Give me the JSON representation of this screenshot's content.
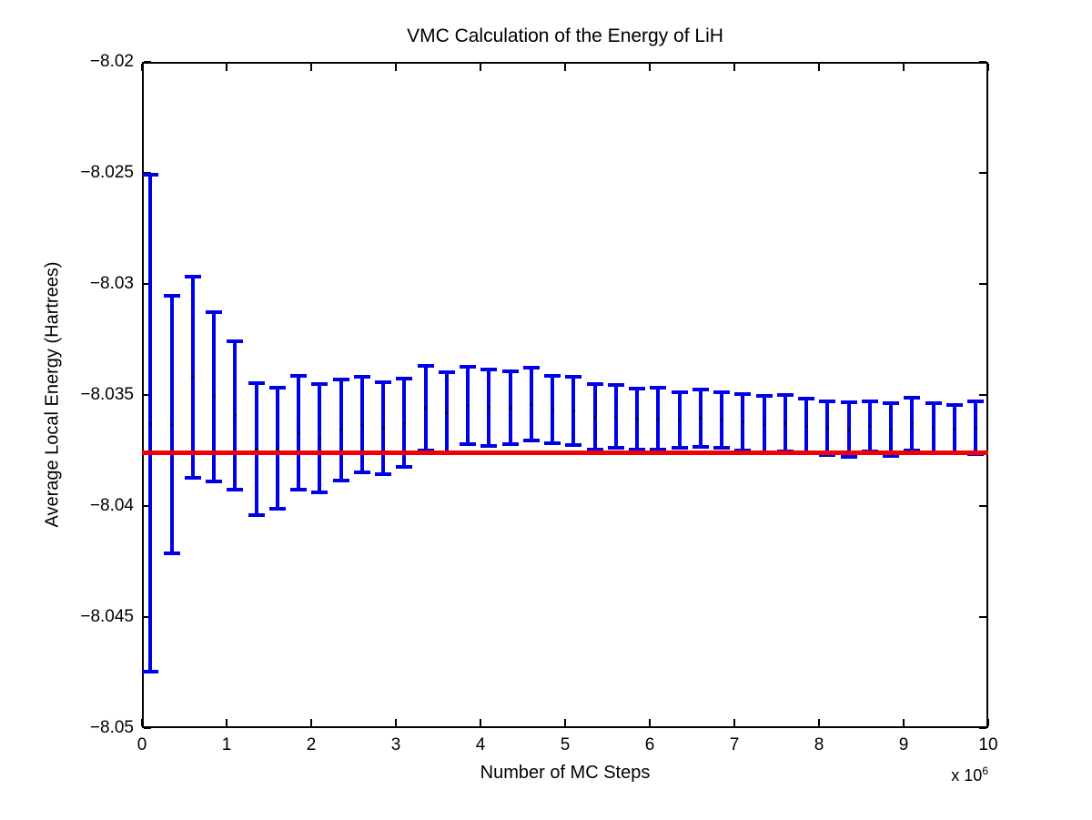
{
  "figure": {
    "background": "#ffffff",
    "title": "VMC Calculation of the Energy of LiH",
    "xlabel": "Number of MC Steps",
    "ylabel": "Average Local Energy (Hartrees)",
    "x_axis_multiplier": {
      "base": "x 10",
      "exponent": "6"
    }
  },
  "chart_data": {
    "type": "errorbar",
    "title": "VMC Calculation of the Energy of LiH",
    "xlabel": "Number of MC Steps",
    "ylabel": "Average Local Energy (Hartrees)",
    "x_scale_label": "x 10^6",
    "xlim": [
      0,
      10
    ],
    "ylim": [
      -8.05,
      -8.02
    ],
    "grid": false,
    "box": true,
    "legend": "none",
    "xticks": [
      0,
      1,
      2,
      3,
      4,
      5,
      6,
      7,
      8,
      9,
      10
    ],
    "xtick_labels": [
      "0",
      "1",
      "2",
      "3",
      "4",
      "5",
      "6",
      "7",
      "8",
      "9",
      "10"
    ],
    "ytick_values": [
      -8.02,
      -8.025,
      -8.03,
      -8.035,
      -8.04,
      -8.045,
      -8.05
    ],
    "ytick_labels": [
      "−8.02",
      "−8.025",
      "−8.03",
      "−8.035",
      "−8.04",
      "−8.045",
      "−8.05"
    ],
    "errorbar_color": "#0000e8",
    "marker_color": "#000050",
    "axis_color": "#000000",
    "reference_line": {
      "value": -8.0376,
      "color": "#f00000"
    },
    "points": [
      {
        "x": 0.1,
        "mean": -8.03628,
        "err": 0.01118
      },
      {
        "x": 0.35,
        "mean": -8.03634,
        "err": 0.00581
      },
      {
        "x": 0.6,
        "mean": -8.0342,
        "err": 0.00454
      },
      {
        "x": 0.85,
        "mean": -8.03508,
        "err": 0.00382
      },
      {
        "x": 1.1,
        "mean": -8.03593,
        "err": 0.00335
      },
      {
        "x": 1.35,
        "mean": -8.03744,
        "err": 0.00297
      },
      {
        "x": 1.6,
        "mean": -8.03739,
        "err": 0.00272
      },
      {
        "x": 1.85,
        "mean": -8.0367,
        "err": 0.00257
      },
      {
        "x": 2.1,
        "mean": -8.03695,
        "err": 0.00245
      },
      {
        "x": 2.35,
        "mean": -8.03658,
        "err": 0.00228
      },
      {
        "x": 2.6,
        "mean": -8.03634,
        "err": 0.00216
      },
      {
        "x": 2.85,
        "mean": -8.0365,
        "err": 0.00208
      },
      {
        "x": 3.1,
        "mean": -8.03625,
        "err": 0.00199
      },
      {
        "x": 3.35,
        "mean": -8.0356,
        "err": 0.00191
      },
      {
        "x": 3.6,
        "mean": -8.0358,
        "err": 0.00183
      },
      {
        "x": 3.85,
        "mean": -8.03547,
        "err": 0.00175
      },
      {
        "x": 4.1,
        "mean": -8.03557,
        "err": 0.00172
      },
      {
        "x": 4.35,
        "mean": -8.03558,
        "err": 0.00165
      },
      {
        "x": 4.6,
        "mean": -8.03541,
        "err": 0.00164
      },
      {
        "x": 4.85,
        "mean": -8.03566,
        "err": 0.00152
      },
      {
        "x": 5.1,
        "mean": -8.03572,
        "err": 0.00154
      },
      {
        "x": 5.35,
        "mean": -8.03599,
        "err": 0.00148
      },
      {
        "x": 5.6,
        "mean": -8.03597,
        "err": 0.00142
      },
      {
        "x": 5.85,
        "mean": -8.03609,
        "err": 0.00138
      },
      {
        "x": 6.1,
        "mean": -8.03607,
        "err": 0.0014
      },
      {
        "x": 6.35,
        "mean": -8.03613,
        "err": 0.00125
      },
      {
        "x": 6.6,
        "mean": -8.03605,
        "err": 0.0013
      },
      {
        "x": 6.85,
        "mean": -8.03613,
        "err": 0.00125
      },
      {
        "x": 7.1,
        "mean": -8.03622,
        "err": 0.00126
      },
      {
        "x": 7.35,
        "mean": -8.03632,
        "err": 0.00128
      },
      {
        "x": 7.6,
        "mean": -8.03628,
        "err": 0.00128
      },
      {
        "x": 7.85,
        "mean": -8.0364,
        "err": 0.00124
      },
      {
        "x": 8.1,
        "mean": -8.0365,
        "err": 0.00121
      },
      {
        "x": 8.35,
        "mean": -8.03656,
        "err": 0.00123
      },
      {
        "x": 8.6,
        "mean": -8.03642,
        "err": 0.00113
      },
      {
        "x": 8.85,
        "mean": -8.03656,
        "err": 0.00119
      },
      {
        "x": 9.1,
        "mean": -8.0363,
        "err": 0.00118
      },
      {
        "x": 9.35,
        "mean": -8.03648,
        "err": 0.00111
      },
      {
        "x": 9.6,
        "mean": -8.03654,
        "err": 0.00109
      },
      {
        "x": 9.85,
        "mean": -8.03648,
        "err": 0.00119
      }
    ]
  }
}
